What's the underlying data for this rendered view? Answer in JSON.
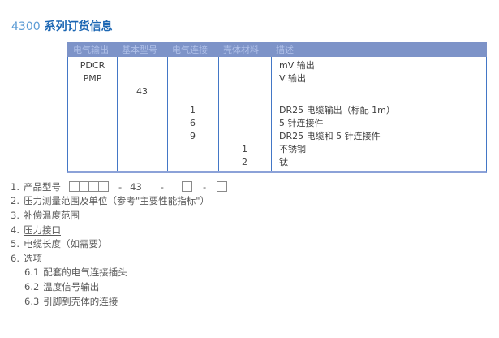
{
  "title": {
    "prefix": "4300",
    "text": "系列订货信息"
  },
  "colors": {
    "title_number": "#5B9BD5",
    "title_text": "#1B66B3",
    "header_bg": "#7D93C8",
    "header_text": "#B0C0E8",
    "grid_line": "#4377C6",
    "table_bottom": "#8CA2D8",
    "body_text": "#3F3F3F",
    "list_text": "#595959",
    "box_border": "#8A8A8A"
  },
  "table": {
    "headers": [
      "电气输出",
      "基本型号",
      "电气连接",
      "壳体材料",
      "描述"
    ],
    "rows": [
      [
        "PDCR",
        "",
        "",
        "",
        "mV 输出"
      ],
      [
        "PMP",
        "",
        "",
        "",
        "V 输出"
      ],
      [
        "",
        "43",
        "",
        "",
        ""
      ],
      [
        "",
        "",
        "1",
        "",
        "DR25 电缆输出（标配 1m）"
      ],
      [
        "",
        "",
        "6",
        "",
        "5 针连接件"
      ],
      [
        "",
        "",
        "9",
        "",
        "DR25 电缆和 5 针连接件"
      ],
      [
        "",
        "",
        "",
        "1",
        "不锈钢"
      ],
      [
        "",
        "",
        "",
        "2",
        "钛"
      ]
    ]
  },
  "steps": {
    "model_base_code": "43",
    "dash": "-",
    "items": [
      {
        "num": "1.",
        "label": "产品型号"
      },
      {
        "num": "2.",
        "link": "压力测量范围及单位",
        "suffix": "（参考\"主要性能指标\"）"
      },
      {
        "num": "3.",
        "label": "补偿温度范围"
      },
      {
        "num": "4.",
        "link": "压力接口"
      },
      {
        "num": "5.",
        "label": "电缆长度（如需要）"
      },
      {
        "num": "6.",
        "label": "选项"
      },
      {
        "num": "6.1",
        "label": "配套的电气连接插头"
      },
      {
        "num": "6.2",
        "label": "温度信号输出"
      },
      {
        "num": "6.3",
        "label": "引脚到壳体的连接"
      }
    ]
  }
}
